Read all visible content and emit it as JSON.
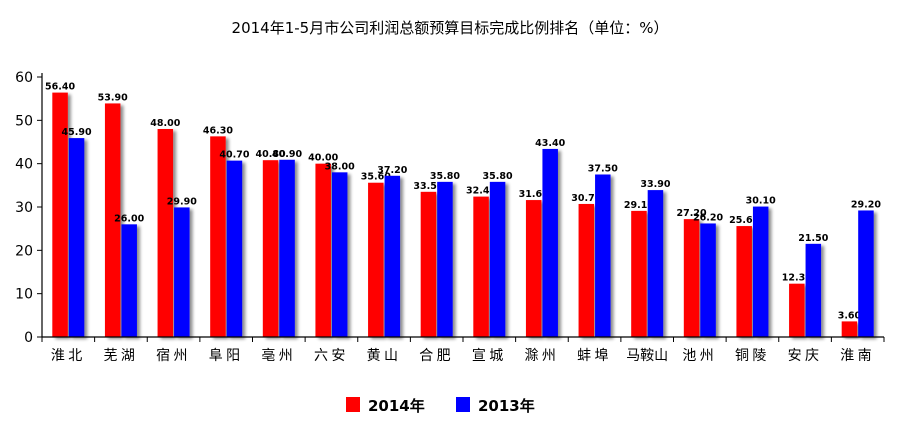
{
  "chart_data": {
    "type": "bar",
    "title": "2014年1-5月市公司利润总额预算目标完成比例排名（单位：%）",
    "categories": [
      "淮北",
      "芜湖",
      "宿州",
      "阜阳",
      "亳州",
      "六安",
      "黄山",
      "合肥",
      "宣城",
      "滁州",
      "蚌埠",
      "马鞍山",
      "池州",
      "铜陵",
      "安庆",
      "淮南"
    ],
    "series": [
      {
        "name": "2014年",
        "color": "#ff0000",
        "values": [
          56.4,
          53.9,
          48.0,
          46.3,
          40.8,
          40.0,
          35.6,
          33.5,
          32.4,
          31.6,
          30.7,
          29.1,
          27.2,
          25.6,
          12.3,
          3.6
        ],
        "labels": [
          "56.40",
          "53.90",
          "48.00",
          "46.30",
          "40.80",
          "40.00",
          "35.60",
          "33.50",
          "32.40",
          "31.60",
          "30.70",
          "29.10",
          "27.20",
          "25.60",
          "12.30",
          "3.60"
        ]
      },
      {
        "name": "2013年",
        "color": "#0000ff",
        "values": [
          45.9,
          26.0,
          29.9,
          40.7,
          40.9,
          38.0,
          37.2,
          35.8,
          35.8,
          43.4,
          37.5,
          33.9,
          26.2,
          30.1,
          21.5,
          29.2
        ],
        "labels": [
          "45.90",
          "26.00",
          "29.90",
          "40.70",
          "40.90",
          "38.00",
          "37.20",
          "35.80",
          "35.80",
          "43.40",
          "37.50",
          "33.90",
          "26.20",
          "30.10",
          "21.50",
          "29.20"
        ]
      }
    ],
    "ylim": [
      0,
      60
    ],
    "yticks": [
      "0",
      "10",
      "20",
      "30",
      "40",
      "50",
      "60"
    ],
    "xlabel": "",
    "ylabel": "",
    "legend_position": "bottom-center"
  }
}
